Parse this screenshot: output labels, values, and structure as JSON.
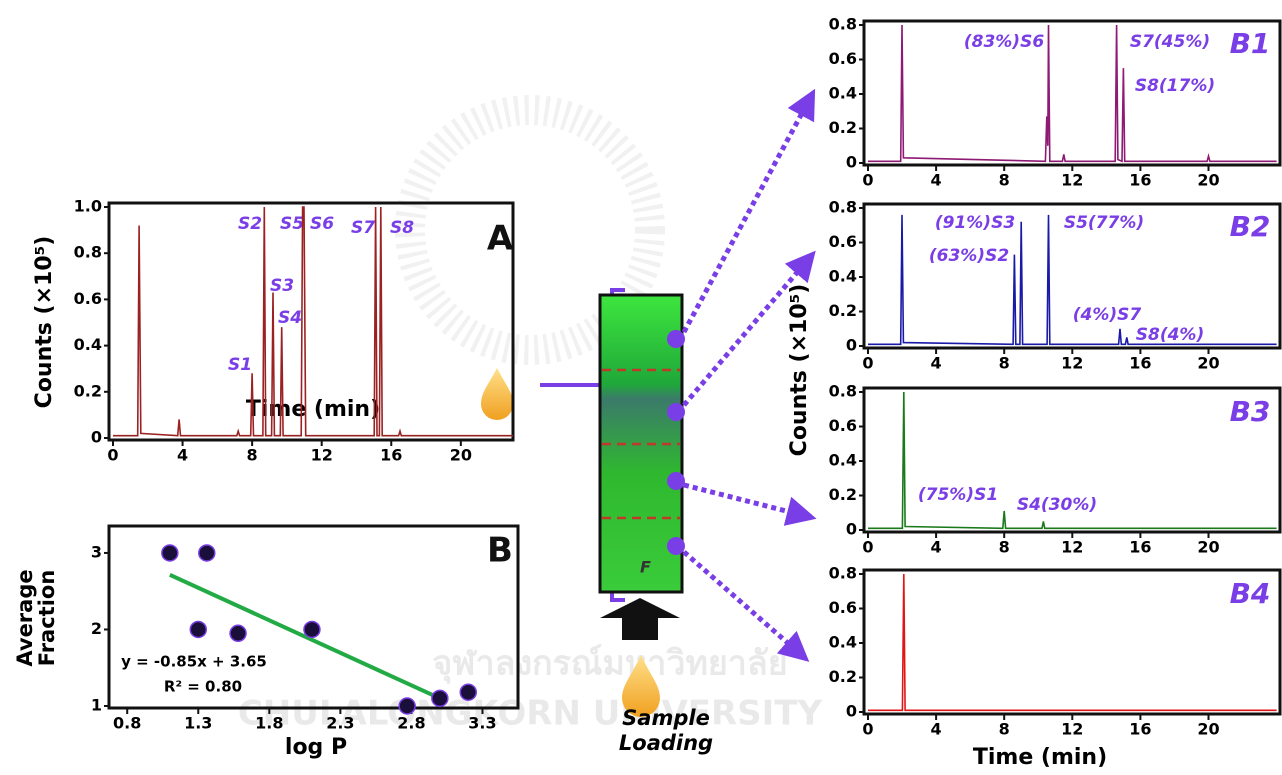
{
  "chart_data": [
    {
      "type": "line",
      "title": "A",
      "ylabel": "Counts (×10⁵)",
      "xlabel": "Time (min)",
      "color": "#9b2222",
      "x": [
        0,
        1.42,
        1.5,
        1.6,
        3.72,
        3.8,
        3.88,
        7.12,
        7.2,
        7.28,
        7.92,
        8.0,
        8.08,
        8.62,
        8.7,
        8.78,
        9.12,
        9.2,
        9.28,
        9.62,
        9.7,
        9.78,
        10.82,
        10.9,
        10.98,
        11.08,
        15.02,
        15.1,
        15.18,
        15.32,
        15.4,
        15.48,
        16.42,
        16.5,
        16.58,
        23
      ],
      "values": [
        0.01,
        0.01,
        0.92,
        0.02,
        0.01,
        0.08,
        0.01,
        0.01,
        0.03,
        0.01,
        0.01,
        0.28,
        0.01,
        0.01,
        1.0,
        0.01,
        0.01,
        0.63,
        0.01,
        0.01,
        0.48,
        0.01,
        0.01,
        1.0,
        1.0,
        0.01,
        0.01,
        1.0,
        0.01,
        0.01,
        1.0,
        0.01,
        0.01,
        0.03,
        0.01,
        0.01
      ],
      "xlim": [
        0,
        23
      ],
      "xticks": [
        0,
        4,
        8,
        12,
        16,
        20
      ],
      "ylim": [
        0,
        1.0
      ],
      "yticks": [
        0,
        0.2,
        0.4,
        0.6,
        0.8,
        {
          "value": 1.0,
          "label": "1.0"
        }
      ],
      "annotations": [
        "S1",
        "S2",
        "S3",
        "S4",
        "S5",
        "S6",
        "S7",
        "S8"
      ]
    },
    {
      "type": "scatter",
      "title": "B",
      "ylabel": [
        "Average",
        "Fraction"
      ],
      "xlabel": "log P",
      "color": "#1a0f3a",
      "line_color": "#22aa44",
      "x": [
        1.1,
        1.36,
        1.3,
        1.58,
        2.1,
        2.77,
        3.0,
        3.2
      ],
      "values": [
        3,
        3,
        2,
        1.95,
        2,
        1,
        1.1,
        1.18
      ],
      "fit": {
        "slope": -0.85,
        "intercept": 3.65
      },
      "equation": "y = -0.85x + 3.65",
      "r2_label": "R² = 0.80",
      "xlim": [
        0.7,
        3.55
      ],
      "xticks": [
        0.8,
        1.3,
        1.8,
        2.3,
        2.8,
        3.3
      ],
      "ylim": [
        1,
        3.3
      ],
      "yticks": [
        1,
        2,
        3
      ]
    },
    {
      "type": "line",
      "title": "B1",
      "color": "#8e1a74",
      "x": [
        0,
        1.92,
        2.0,
        2.08,
        10.42,
        10.5,
        10.56,
        10.6,
        10.68,
        11.42,
        11.5,
        11.58,
        14.52,
        14.6,
        14.68,
        14.92,
        15.0,
        15.08,
        19.92,
        20,
        20.08,
        24
      ],
      "values": [
        0.01,
        0.01,
        0.8,
        0.03,
        0.01,
        0.27,
        0.1,
        0.8,
        0.01,
        0.01,
        0.05,
        0.01,
        0.01,
        0.8,
        0.02,
        0.01,
        0.55,
        0.01,
        0.01,
        0.04,
        0.01,
        0.01
      ],
      "xlim": [
        0,
        24.2
      ],
      "xticks": [
        0,
        4,
        8,
        12,
        16,
        20
      ],
      "ylim": [
        0,
        0.8
      ],
      "yticks": [
        0,
        0.2,
        0.4,
        0.6,
        0.8
      ],
      "annotations": [
        "(83%)S6",
        "S7(45%)",
        "S8(17%)"
      ]
    },
    {
      "type": "line",
      "title": "B2",
      "color": "#1a1aa8",
      "x": [
        0,
        1.92,
        2.0,
        2.08,
        8.52,
        8.6,
        8.68,
        8.92,
        9.0,
        9.08,
        10.52,
        10.6,
        10.68,
        14.72,
        14.8,
        14.88,
        15.12,
        15.2,
        15.28,
        24
      ],
      "values": [
        0.01,
        0.01,
        0.76,
        0.02,
        0.01,
        0.53,
        0.01,
        0.01,
        0.72,
        0.01,
        0.01,
        0.76,
        0.01,
        0.01,
        0.1,
        0.01,
        0.01,
        0.05,
        0.01,
        0.01
      ],
      "xlim": [
        0,
        24.2
      ],
      "xticks": [
        0,
        4,
        8,
        12,
        16,
        20
      ],
      "ylim": [
        0,
        0.8
      ],
      "yticks": [
        0,
        0.2,
        0.4,
        0.6,
        0.8
      ],
      "annotations": [
        "(91%)S3",
        "(63%)S2",
        "S5(77%)",
        "(4%)S7",
        "S8(4%)"
      ]
    },
    {
      "type": "line",
      "title": "B3",
      "color": "#1a7a1a",
      "x": [
        0,
        2.02,
        2.1,
        2.18,
        7.92,
        8.0,
        8.08,
        10.22,
        10.3,
        10.38,
        24
      ],
      "values": [
        0.01,
        0.01,
        0.8,
        0.02,
        0.01,
        0.11,
        0.01,
        0.01,
        0.05,
        0.01,
        0.01
      ],
      "xlim": [
        0,
        24.2
      ],
      "xticks": [
        0,
        4,
        8,
        12,
        16,
        20
      ],
      "ylim": [
        0,
        0.8
      ],
      "yticks": [
        0,
        0.2,
        0.4,
        0.6,
        0.8
      ],
      "annotations": [
        "(75%)S1",
        "S4(30%)"
      ]
    },
    {
      "type": "line",
      "title": "B4",
      "xlabel": "Time (min)",
      "color": "#e01515",
      "x": [
        0,
        2.02,
        2.1,
        2.18,
        24
      ],
      "values": [
        0.01,
        0.01,
        0.8,
        0.01,
        0.01
      ],
      "xlim": [
        0,
        24.2
      ],
      "xticks": [
        0,
        4,
        8,
        12,
        16,
        20
      ],
      "ylim": [
        0,
        0.8
      ],
      "yticks": [
        0,
        0.2,
        0.4,
        0.6,
        0.8
      ],
      "annotations": []
    }
  ],
  "figure": {
    "b_ylabel": "Counts (×10⁵)",
    "plate_label": "F",
    "sample_loading": [
      "Sample",
      "Loading"
    ],
    "watermark": [
      "จุฬาลงกรณ์มหาวิทยาลัย",
      "CHULALONGKORN UNIVERSITY"
    ]
  }
}
